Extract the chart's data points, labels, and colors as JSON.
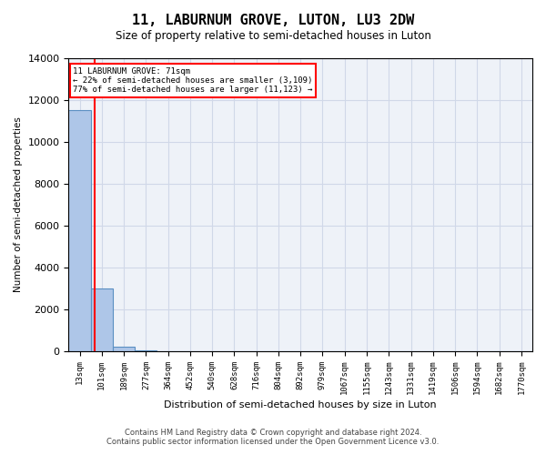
{
  "title": "11, LABURNUM GROVE, LUTON, LU3 2DW",
  "subtitle": "Size of property relative to semi-detached houses in Luton",
  "xlabel": "Distribution of semi-detached houses by size in Luton",
  "ylabel": "Number of semi-detached properties",
  "bin_labels": [
    "13sqm",
    "101sqm",
    "189sqm",
    "277sqm",
    "364sqm",
    "452sqm",
    "540sqm",
    "628sqm",
    "716sqm",
    "804sqm",
    "892sqm",
    "979sqm",
    "1067sqm",
    "1155sqm",
    "1243sqm",
    "1331sqm",
    "1419sqm",
    "1506sqm",
    "1594sqm",
    "1682sqm",
    "1770sqm"
  ],
  "bar_values": [
    11500,
    3000,
    200,
    10,
    5,
    2,
    1,
    1,
    1,
    1,
    0,
    0,
    0,
    0,
    0,
    0,
    0,
    0,
    0,
    0,
    0
  ],
  "bar_color": "#aec6e8",
  "bar_edge_color": "#5a8fc2",
  "annotation_text_line1": "11 LABURNUM GROVE: 71sqm",
  "annotation_text_line2": "← 22% of semi-detached houses are smaller (3,109)",
  "annotation_text_line3": "77% of semi-detached houses are larger (11,123) →",
  "ylim": [
    0,
    14000
  ],
  "yticks": [
    0,
    2000,
    4000,
    6000,
    8000,
    10000,
    12000,
    14000
  ],
  "footer_line1": "Contains HM Land Registry data © Crown copyright and database right 2024.",
  "footer_line2": "Contains public sector information licensed under the Open Government Licence v3.0.",
  "background_color": "#ffffff",
  "grid_color": "#d0d8e8",
  "plot_bg_color": "#eef2f8"
}
